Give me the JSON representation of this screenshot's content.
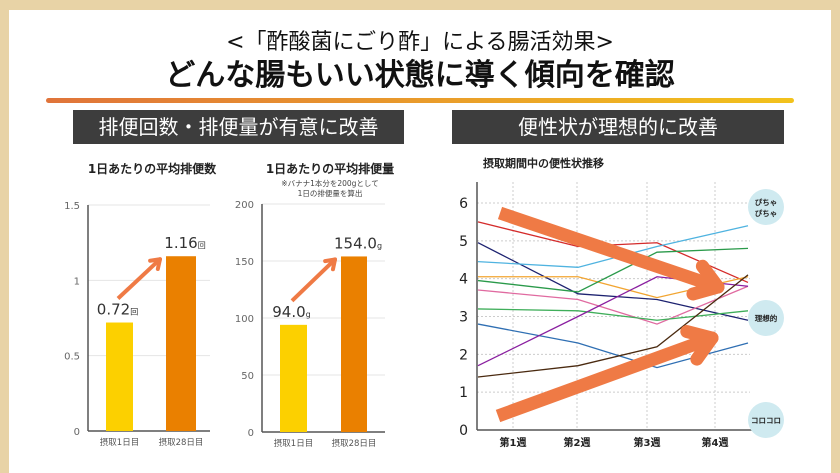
{
  "header": {
    "subtitle": "<「酢酸菌にごり酢」による腸活効果>",
    "title": "どんな腸もいい状態に導く傾向を確認"
  },
  "sections": {
    "left": "排便回数・排便量が有意に改善",
    "right": "便性状が理想的に改善"
  },
  "chart_data": [
    {
      "type": "bar",
      "title": "1日あたりの平均排便数",
      "categories": [
        "摂取1日目",
        "摂取28日目"
      ],
      "values": [
        0.72,
        1.16
      ],
      "labels": [
        "0.72",
        "1.16"
      ],
      "unit": "回",
      "ylim": [
        0,
        1.5
      ],
      "yticks": [
        "0",
        "0.5",
        "1",
        "1.5"
      ],
      "colors": [
        "#fcd000",
        "#ea8000"
      ]
    },
    {
      "type": "bar",
      "title": "1日あたりの平均排便量",
      "note": [
        "※バナナ1本分を200gとして",
        "1日の排便量を算出"
      ],
      "categories": [
        "摂取1日目",
        "摂取28日目"
      ],
      "values": [
        94.0,
        154.0
      ],
      "labels": [
        "94.0",
        "154.0"
      ],
      "unit": "g",
      "ylim": [
        0,
        200
      ],
      "yticks": [
        "0",
        "50",
        "100",
        "150",
        "200"
      ],
      "colors": [
        "#fcd000",
        "#ea8000"
      ]
    },
    {
      "type": "line",
      "title": "摂取期間中の便性状推移",
      "xticks": [
        "第1週",
        "第2週",
        "第3週",
        "第4週"
      ],
      "yticks": [
        "0",
        "1",
        "2",
        "3",
        "4",
        "5",
        "6"
      ],
      "ylim": [
        0,
        6
      ],
      "x": [
        0.5,
        1.5,
        2.5,
        3.5
      ],
      "series": [
        {
          "color": "#d42b2b",
          "values": [
            5.5,
            4.85,
            4.95,
            3.9
          ]
        },
        {
          "color": "#1d2270",
          "values": [
            4.95,
            3.6,
            3.45,
            2.9
          ]
        },
        {
          "color": "#4fb3e0",
          "values": [
            4.45,
            4.3,
            4.85,
            5.4
          ]
        },
        {
          "color": "#f2a531",
          "values": [
            4.05,
            4.05,
            3.5,
            4.05
          ]
        },
        {
          "color": "#2a9a4a",
          "values": [
            3.95,
            3.65,
            4.7,
            4.8
          ]
        },
        {
          "color": "#e06aa0",
          "values": [
            3.7,
            3.45,
            2.8,
            3.8
          ]
        },
        {
          "color": "#3fae5a",
          "values": [
            3.2,
            3.15,
            2.9,
            3.15
          ]
        },
        {
          "color": "#2f6fb3",
          "values": [
            2.8,
            2.3,
            1.65,
            2.3
          ]
        },
        {
          "color": "#8a1fa0",
          "values": [
            1.7,
            3.0,
            4.05,
            3.8
          ]
        },
        {
          "color": "#4a2a10",
          "values": [
            1.4,
            1.7,
            2.2,
            4.1
          ]
        }
      ],
      "annotations": [
        "ぴちゃ",
        "ぴちゃ",
        "理想的",
        "コロコロ"
      ],
      "arrow_color": "#ef7a45"
    }
  ]
}
